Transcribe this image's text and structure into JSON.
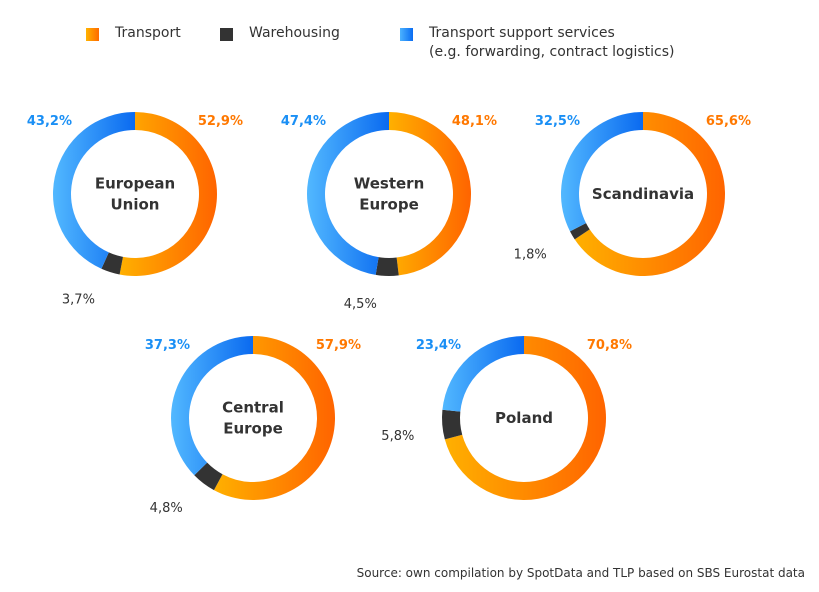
{
  "legend": {
    "transport": "Transport",
    "warehousing": "Warehousing",
    "support_line1": "Transport support services",
    "support_line2": "(e.g. forwarding, contract logistics)"
  },
  "colors": {
    "transport": "#ff7f00",
    "warehousing": "#333333",
    "support": "#1e8cff"
  },
  "chart_data": [
    {
      "type": "pie",
      "title": "European Union",
      "title_lines": [
        "European",
        "Union"
      ],
      "labels": [
        "Transport",
        "Warehousing",
        "Transport support services"
      ],
      "values": [
        52.9,
        3.7,
        43.2
      ],
      "value_labels": [
        "52,9%",
        "3,7%",
        "43,2%"
      ]
    },
    {
      "type": "pie",
      "title": "Western Europe",
      "title_lines": [
        "Western",
        "Europe"
      ],
      "labels": [
        "Transport",
        "Warehousing",
        "Transport support services"
      ],
      "values": [
        48.1,
        4.5,
        47.4
      ],
      "value_labels": [
        "48,1%",
        "4,5%",
        "47,4%"
      ]
    },
    {
      "type": "pie",
      "title": "Scandinavia",
      "title_lines": [
        "Scandinavia"
      ],
      "labels": [
        "Transport",
        "Warehousing",
        "Transport support services"
      ],
      "values": [
        65.6,
        1.8,
        32.5
      ],
      "value_labels": [
        "65,6%",
        "1,8%",
        "32,5%"
      ]
    },
    {
      "type": "pie",
      "title": "Central Europe",
      "title_lines": [
        "Central",
        "Europe"
      ],
      "labels": [
        "Transport",
        "Warehousing",
        "Transport support services"
      ],
      "values": [
        57.9,
        4.8,
        37.3
      ],
      "value_labels": [
        "57,9%",
        "4,8%",
        "37,3%"
      ]
    },
    {
      "type": "pie",
      "title": "Poland",
      "title_lines": [
        "Poland"
      ],
      "labels": [
        "Transport",
        "Warehousing",
        "Transport support services"
      ],
      "values": [
        70.8,
        5.8,
        23.4
      ],
      "value_labels": [
        "70,8%",
        "5,8%",
        "23,4%"
      ]
    }
  ],
  "source": "Source: own compilation by SpotData and TLP based on SBS Eurostat data"
}
